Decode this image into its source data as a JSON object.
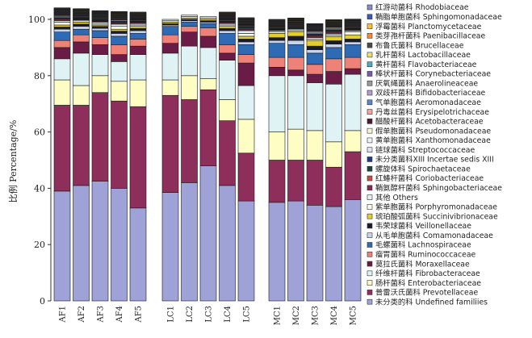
{
  "chart_data": {
    "type": "bar",
    "stacked": true,
    "ylabel": "比例 Percentage/%",
    "ylim": [
      0,
      100
    ],
    "yticks": [
      0,
      20,
      40,
      60,
      80,
      100
    ],
    "groups": [
      [
        "AF1",
        "AF2",
        "AF3",
        "AF4",
        "AF5"
      ],
      [
        "LC1",
        "LC2",
        "LC3",
        "LC4",
        "LC5"
      ],
      [
        "MC1",
        "MC2",
        "MC3",
        "MC4",
        "MC5"
      ]
    ],
    "categories": [
      "AF1",
      "AF2",
      "AF3",
      "AF4",
      "AF5",
      "LC1",
      "LC2",
      "LC3",
      "LC4",
      "LC5",
      "MC1",
      "MC2",
      "MC3",
      "MC4",
      "MC5"
    ],
    "legend_position": "right",
    "series": [
      {
        "name": "未分类的科  Undefined familiies",
        "color": "#9ea2d6",
        "values": [
          39,
          41,
          42.5,
          40,
          33,
          38.5,
          42,
          48,
          41,
          35.5,
          35,
          35.5,
          34,
          33.5,
          36
        ]
      },
      {
        "name": "普雷沃氏菌科  Prevotellaceae",
        "color": "#8e2e5a",
        "values": [
          30.5,
          28.5,
          31.5,
          31,
          36,
          34.5,
          29.5,
          27,
          23,
          17,
          15,
          14.5,
          16,
          14,
          17
        ]
      },
      {
        "name": "肠杆菌科  Enterobacteriaceae",
        "color": "#fdfdc4",
        "values": [
          9,
          7,
          6,
          7,
          9.5,
          5.5,
          8.5,
          4,
          7.5,
          12,
          10,
          11,
          10.5,
          9,
          7.5
        ]
      },
      {
        "name": "纤维杆菌科  Fibrobacteraceae",
        "color": "#dff2f4",
        "values": [
          7.5,
          11.5,
          7.5,
          7,
          9,
          9.5,
          10.5,
          11,
          14,
          12,
          20,
          19,
          17,
          20.5,
          20
        ]
      },
      {
        "name": "莫拉氏菌科  Moraxellaceae",
        "color": "#6a1c46",
        "values": [
          4,
          4,
          3.5,
          2.5,
          3,
          3.5,
          5,
          4,
          2.5,
          8,
          3,
          2,
          3,
          4.5,
          2
        ]
      },
      {
        "name": "瘤胃菌科  Ruminococcaceae",
        "color": "#ef8278",
        "values": [
          2.5,
          2.5,
          2.5,
          3.5,
          2.5,
          3,
          2,
          3,
          3,
          3,
          3.5,
          4.5,
          3.5,
          4.5,
          4
        ]
      },
      {
        "name": "毛螺菌科  Lachnospiraceae",
        "color": "#2f6bb4",
        "values": [
          3,
          2,
          2.5,
          3,
          2,
          3,
          1.5,
          1.5,
          4,
          3.5,
          5,
          4.5,
          4,
          4,
          4.5
        ]
      },
      {
        "name": "从毛单胞菌科  Comamonadaceae",
        "color": "#c8d4ee",
        "values": [
          1,
          1,
          0.8,
          1,
          1,
          0.5,
          0.5,
          0.5,
          1,
          1,
          1,
          1.5,
          1.2,
          1.2,
          1
        ]
      },
      {
        "name": "韦荣球菌科  Veillonellaceae",
        "color": "#1a1a2e",
        "values": [
          0.8,
          0.8,
          0.7,
          0.8,
          0.8,
          0.5,
          0.5,
          0.5,
          0.8,
          1,
          1,
          1.5,
          1.3,
          1.2,
          1
        ]
      },
      {
        "name": "琥珀酸弧菌科  Succinivibrionaceae",
        "color": "#e3ce2e",
        "values": [
          0.7,
          0.7,
          0.5,
          0.7,
          0.7,
          0.5,
          0.5,
          0.5,
          0.7,
          1,
          1.5,
          1.5,
          2,
          1.5,
          1.5
        ]
      },
      {
        "name": "紫单胞菌科  Porphyromonadaceae",
        "color": "#fbfbea",
        "values": [
          1,
          0.5,
          0.5,
          1,
          0.5,
          0.5,
          0.5,
          0.5,
          0.5,
          1,
          0.5,
          0.5,
          0.5,
          0.5,
          1
        ]
      },
      {
        "name": "其他  Others",
        "color": "#e2f0f6",
        "values": [
          0.5,
          0.3,
          0.5,
          0.8,
          0.5,
          0.5,
          0.5,
          0.5,
          0.5,
          1,
          0.5,
          0.5,
          0.5,
          0.5,
          0.5
        ]
      },
      {
        "name": "鞘氨醇杆菌科  Sphingobacteriaceae",
        "color": "#852a56",
        "values": [
          0.3,
          0.2,
          0.3,
          0.3,
          0.3,
          0,
          0,
          0,
          0.3,
          0.5,
          0.2,
          0.2,
          0.5,
          0.5,
          0.3
        ]
      },
      {
        "name": "红蝽杆菌科  Coriobacteriaceae",
        "color": "#cc4a40",
        "values": [
          0.3,
          0.2,
          0.2,
          0.3,
          0.2,
          0,
          0,
          0,
          0.2,
          0.3,
          0.2,
          0.2,
          0.3,
          0.3,
          0.2
        ]
      },
      {
        "name": "螺旋体科  Spirochaetaceae",
        "color": "#14463e",
        "values": [
          0.3,
          0.2,
          0.2,
          0.3,
          0.2,
          0,
          0,
          0,
          0.2,
          0.3,
          0.2,
          0.2,
          0.3,
          0.3,
          0.2
        ]
      },
      {
        "name": "未分类菌科XIII  Incertae sedis XIII",
        "color": "#1b3a8c",
        "values": [
          0.3,
          0.2,
          0.2,
          0.3,
          0.2,
          0,
          0,
          0,
          0.2,
          0.3,
          0.2,
          0.2,
          0.3,
          0.3,
          0.2
        ]
      },
      {
        "name": "链球菌科  Streptococcaceae",
        "color": "#dfe3f4",
        "values": [
          0.3,
          0.2,
          0.2,
          0.3,
          0.2,
          0,
          0,
          0,
          0.2,
          0.2,
          0.2,
          0.2,
          0.3,
          0.3,
          0.2
        ]
      },
      {
        "name": "黄单胞菌科  Xanthomonadaceae",
        "color": "#eaf6f8",
        "values": [
          0.3,
          0.2,
          0.2,
          0.2,
          0.2,
          0,
          0,
          0,
          0.2,
          0.2,
          0.2,
          0.2,
          0.3,
          0.3,
          0.2
        ]
      },
      {
        "name": "假单胞菌科  Pseudomonadaceae",
        "color": "#f6f6d8",
        "values": [
          0.2,
          0.2,
          0.2,
          0.2,
          0.2,
          0,
          0,
          0,
          0.2,
          0.2,
          0.2,
          0.2,
          0.3,
          0.3,
          0.2
        ]
      },
      {
        "name": "醋酸杆菌科  Acetobacteraceae",
        "color": "#4a1a33",
        "values": [
          0.2,
          0.2,
          0.2,
          0.2,
          0.2,
          0,
          0,
          0,
          0.2,
          0.2,
          0.2,
          0.2,
          0.3,
          0.3,
          0.2
        ]
      },
      {
        "name": "丹毒丝菌科  Erysipelotrichaceae",
        "color": "#f3a5a0",
        "values": [
          0.2,
          0.2,
          0.2,
          0.2,
          0.2,
          0,
          0,
          0,
          0.2,
          0.2,
          0.2,
          0.2,
          0.2,
          0.2,
          0.2
        ]
      },
      {
        "name": "气单胞菌科  Aeromonadaceae",
        "color": "#5a86c8",
        "values": [
          0.2,
          0.2,
          0.2,
          0.2,
          0.2,
          0,
          0,
          0,
          0.2,
          0.2,
          0.2,
          0.2,
          0.2,
          0.2,
          0.2
        ]
      },
      {
        "name": "双歧杆菌科  Bifidobacteriaceae",
        "color": "#b79ad0",
        "values": [
          0.2,
          0.2,
          0.2,
          0.2,
          0.2,
          0,
          0,
          0,
          0.2,
          0.2,
          0.2,
          0.2,
          0.2,
          0.2,
          0.2
        ]
      },
      {
        "name": "厌氧绳菌科  Anaerolineaceae",
        "color": "#9a9aa0",
        "values": [
          0.2,
          0.2,
          0.2,
          0.2,
          0.2,
          0,
          0,
          0,
          0.2,
          0.2,
          0.2,
          0.2,
          0.2,
          0.2,
          0.2
        ]
      },
      {
        "name": "棒状杆菌科  Corynebacteriaceae",
        "color": "#7a5ab0",
        "values": [
          0.2,
          0.2,
          0.2,
          0.2,
          0.2,
          0,
          0,
          0,
          0.2,
          0.2,
          0.2,
          0.2,
          0.2,
          0.2,
          0.2
        ]
      },
      {
        "name": "黄杆菌科  Flavobacteriaceae",
        "color": "#46b0c0",
        "values": [
          0.2,
          0.2,
          0.2,
          0.2,
          0.2,
          0,
          0,
          0,
          0.2,
          0.2,
          0.2,
          0.2,
          0.2,
          0.2,
          0.2
        ]
      },
      {
        "name": "乳杆菌科  Lactobacillaceae",
        "color": "#e8e070",
        "values": [
          0.2,
          0.2,
          0.2,
          0.2,
          0.2,
          0,
          0,
          0,
          0.2,
          0.2,
          0.2,
          0.2,
          0.2,
          0.2,
          0.2
        ]
      },
      {
        "name": "布鲁氏菌科  Brucellaceae",
        "color": "#4a4a4a",
        "values": [
          0.2,
          0.2,
          0.2,
          0.2,
          0.2,
          0,
          0,
          0,
          0.2,
          0.2,
          0.2,
          0.2,
          0.2,
          0.2,
          0.2
        ]
      },
      {
        "name": "类芽孢杆菌科  Paenibacillaceae",
        "color": "#f08a3a",
        "values": [
          0.2,
          0.2,
          0.2,
          0.2,
          0.2,
          0,
          0,
          0,
          0.2,
          0.2,
          0.2,
          0.2,
          0.2,
          0.2,
          0.2
        ]
      },
      {
        "name": "浮霉菌科  Planctomycetaceae",
        "color": "#f7c23a",
        "values": [
          0.2,
          0.2,
          0.2,
          0.2,
          0.2,
          0,
          0,
          0,
          0.2,
          0.2,
          0.2,
          0.2,
          0.2,
          0.2,
          0.2
        ]
      },
      {
        "name": "鞘脂单胞菌科  Sphingomonadaceae",
        "color": "#3a5ab8",
        "values": [
          0.2,
          0.2,
          0.2,
          0.2,
          0.2,
          0,
          0,
          0,
          0.2,
          0.2,
          0.2,
          0.2,
          0.2,
          0.2,
          0.2
        ]
      },
      {
        "name": "红游动菌科  Rhodobiaceae",
        "color": "#8a8ac8",
        "values": [
          0.2,
          0.2,
          0.2,
          0.2,
          0.2,
          0,
          0,
          0,
          0.2,
          0.2,
          0.2,
          0.2,
          0.2,
          0.2,
          0.2
        ]
      }
    ]
  }
}
